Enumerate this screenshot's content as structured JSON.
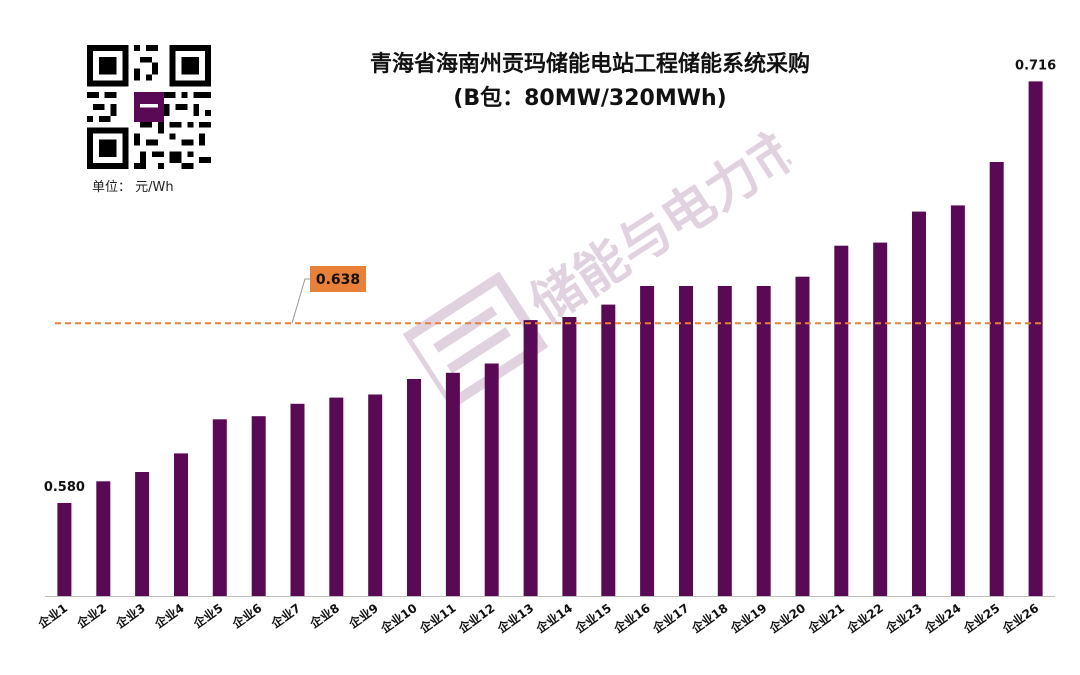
{
  "header": {
    "title_line1": "青海省海南州贡玛储能电站工程储能系统采购",
    "title_line2": "(B包：80MW/320MWh)",
    "unit": "单位：  元/Wh"
  },
  "watermark": {
    "text": "储能与电力市场"
  },
  "colors": {
    "bar": "#5a0a55",
    "reference_line": "#e8803a",
    "reference_box": "#e8803a"
  },
  "chart_data": {
    "type": "bar",
    "categories": [
      "企业1",
      "企业2",
      "企业3",
      "企业4",
      "企业5",
      "企业6",
      "企业7",
      "企业8",
      "企业9",
      "企业10",
      "企业11",
      "企业12",
      "企业13",
      "企业14",
      "企业15",
      "企业16",
      "企业17",
      "企业18",
      "企业19",
      "企业20",
      "企业21",
      "企业22",
      "企业23",
      "企业24",
      "企业25",
      "企业26"
    ],
    "values": [
      0.58,
      0.587,
      0.59,
      0.596,
      0.607,
      0.608,
      0.612,
      0.614,
      0.615,
      0.62,
      0.622,
      0.625,
      0.639,
      0.64,
      0.644,
      0.65,
      0.65,
      0.65,
      0.65,
      0.653,
      0.663,
      0.664,
      0.674,
      0.676,
      0.69,
      0.716
    ],
    "data_labels": [
      {
        "index": 0,
        "text": "0.580"
      },
      {
        "index": 25,
        "text": "0.716"
      }
    ],
    "reference_line": {
      "value": 0.638,
      "label": "0.638",
      "style": "dashed"
    },
    "ylim": [
      0.55,
      0.73
    ],
    "title": "青海省海南州贡玛储能电站工程储能系统采购",
    "xlabel": "",
    "ylabel": "",
    "grid": false,
    "legend": "none"
  }
}
